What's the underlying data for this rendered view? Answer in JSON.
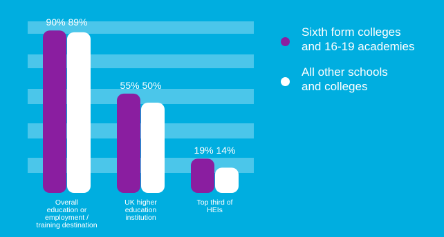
{
  "chart_data": {
    "type": "bar",
    "categories": [
      "Overall\neducation or\nemployment /\ntraining destination",
      "UK higher\neducation\ninstitution",
      "Top third of\nHEIs"
    ],
    "series": [
      {
        "name": "Sixth form colleges\nand 16-19 academies",
        "values": [
          90,
          55,
          19
        ],
        "labels": [
          "90%",
          "55%",
          "19%"
        ],
        "color": "#8a1ea0"
      },
      {
        "name": "All other schools\nand colleges",
        "values": [
          89,
          50,
          14
        ],
        "labels": [
          "89%",
          "50%",
          "14%"
        ],
        "color": "#ffffff"
      }
    ],
    "ylim": [
      0,
      100
    ],
    "grid": true,
    "legend": "right",
    "title": "",
    "xlabel": "",
    "ylabel": "",
    "colors": {
      "background": "#00aee0",
      "gridband": "#4bc6ea"
    }
  }
}
